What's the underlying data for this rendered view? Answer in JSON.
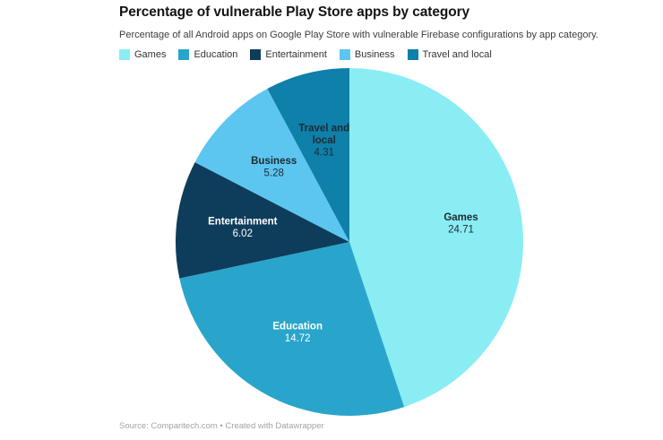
{
  "header": {
    "title": "Percentage of vulnerable Play Store apps by category",
    "subtitle": "Percentage of all Android apps on Google Play Store with vulnerable Firebase configurations by app category."
  },
  "footer": {
    "text": "Source: Comparitech.com • Created with Datawrapper"
  },
  "chart_data": {
    "type": "pie",
    "title": "Percentage of vulnerable Play Store apps by category",
    "subtitle": "Percentage of all Android apps on Google Play Store with vulnerable Firebase configurations by app category.",
    "legend_position": "top",
    "start_angle_deg": 0,
    "direction": "clockwise",
    "slices": [
      {
        "label": "Games",
        "value": 24.71,
        "display_value": "24.71",
        "color": "#8AEDF4",
        "label_color": "#1f2a33"
      },
      {
        "label": "Education",
        "value": 14.72,
        "display_value": "14.72",
        "color": "#29A5CB",
        "label_color": "#FFFFFF"
      },
      {
        "label": "Entertainment",
        "value": 6.02,
        "display_value": "6.02",
        "color": "#0E3D5C",
        "label_color": "#FFFFFF"
      },
      {
        "label": "Business",
        "value": 5.28,
        "display_value": "5.28",
        "color": "#5CC6F1",
        "label_color": "#1f2a33"
      },
      {
        "label": "Travel and local",
        "value": 4.31,
        "display_value": "4.31",
        "color": "#0E80A9",
        "label_color": "#1f2a33",
        "label_lines": [
          "Travel and",
          "local"
        ]
      }
    ]
  }
}
